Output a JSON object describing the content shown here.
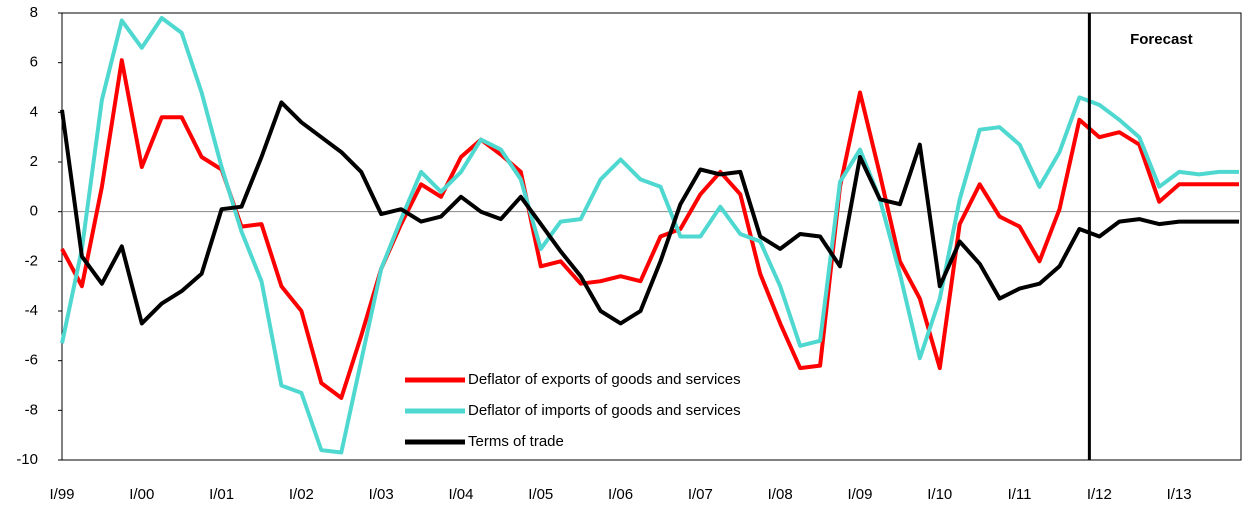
{
  "chart_data": {
    "type": "line",
    "categories": [
      "I/99",
      null,
      null,
      null,
      "I/00",
      null,
      null,
      null,
      "I/01",
      null,
      null,
      null,
      "I/02",
      null,
      null,
      null,
      "I/03",
      null,
      null,
      null,
      "I/04",
      null,
      null,
      null,
      "I/05",
      null,
      null,
      null,
      "I/06",
      null,
      null,
      null,
      "I/07",
      null,
      null,
      null,
      "I/08",
      null,
      null,
      null,
      "I/09",
      null,
      null,
      null,
      "I/10",
      null,
      null,
      null,
      "I/11",
      null,
      null,
      null,
      "I/12",
      null,
      null,
      null,
      "I/13",
      null,
      null,
      null
    ],
    "series": [
      {
        "name": "Deflator of exports of goods and services",
        "color": "#ff0000",
        "values": [
          -1.5,
          -3.0,
          1.0,
          6.1,
          1.8,
          3.8,
          3.8,
          2.2,
          1.7,
          -0.6,
          -0.5,
          -3.0,
          -4.0,
          -6.9,
          -7.5,
          -5.0,
          -2.3,
          -0.5,
          1.1,
          0.6,
          2.2,
          2.9,
          2.3,
          1.6,
          -2.2,
          -2.0,
          -2.9,
          -2.8,
          -2.6,
          -2.8,
          -1.0,
          -0.7,
          0.7,
          1.6,
          0.7,
          -2.5,
          -4.5,
          -6.3,
          -6.2,
          1.0,
          4.8,
          1.5,
          -2.0,
          -3.5,
          -6.3,
          -0.5,
          1.1,
          -0.2,
          -0.6,
          -2.0,
          0.1,
          3.7,
          3.0,
          3.2,
          2.7,
          0.4,
          1.1,
          1.1,
          1.1,
          1.1
        ]
      },
      {
        "name": "Deflator of imports of goods and services",
        "color": "#4fd8d0",
        "values": [
          -5.3,
          -1.5,
          4.5,
          7.7,
          6.6,
          7.8,
          7.2,
          4.8,
          1.8,
          -0.8,
          -2.8,
          -7.0,
          -7.3,
          -9.6,
          -9.7,
          -6.0,
          -2.3,
          -0.3,
          1.6,
          0.8,
          1.6,
          2.9,
          2.5,
          1.3,
          -1.5,
          -0.4,
          -0.3,
          1.3,
          2.1,
          1.3,
          1.0,
          -1.0,
          -1.0,
          0.2,
          -0.9,
          -1.2,
          -3.0,
          -5.4,
          -5.2,
          1.2,
          2.5,
          0.5,
          -2.5,
          -5.9,
          -3.5,
          0.5,
          3.3,
          3.4,
          2.7,
          1.0,
          2.4,
          4.6,
          4.3,
          3.7,
          3.0,
          1.0,
          1.6,
          1.5,
          1.6,
          1.6
        ]
      },
      {
        "name": "Terms of trade",
        "color": "#000000",
        "values": [
          4.1,
          -1.8,
          -2.9,
          -1.4,
          -4.5,
          -3.7,
          -3.2,
          -2.5,
          0.1,
          0.2,
          2.2,
          4.4,
          3.6,
          3.0,
          2.4,
          1.6,
          -0.1,
          0.1,
          -0.4,
          -0.2,
          0.6,
          0.0,
          -0.3,
          0.6,
          -0.5,
          -1.6,
          -2.6,
          -4.0,
          -4.5,
          -4.0,
          -2.0,
          0.3,
          1.7,
          1.5,
          1.6,
          -1.0,
          -1.5,
          -0.9,
          -1.0,
          -2.2,
          2.2,
          0.5,
          0.3,
          2.7,
          -3.0,
          -1.2,
          -2.1,
          -3.5,
          -3.1,
          -2.9,
          -2.2,
          -0.7,
          -1.0,
          -0.4,
          -0.3,
          -0.5,
          -0.4,
          -0.4,
          -0.4,
          -0.4
        ]
      }
    ],
    "ylim": [
      -10,
      8
    ],
    "yticks": [
      -10,
      -8,
      -6,
      -4,
      -2,
      0,
      2,
      4,
      6,
      8
    ],
    "forecast": {
      "label": "Forecast",
      "x": 51.5
    },
    "legend": "lower center"
  }
}
